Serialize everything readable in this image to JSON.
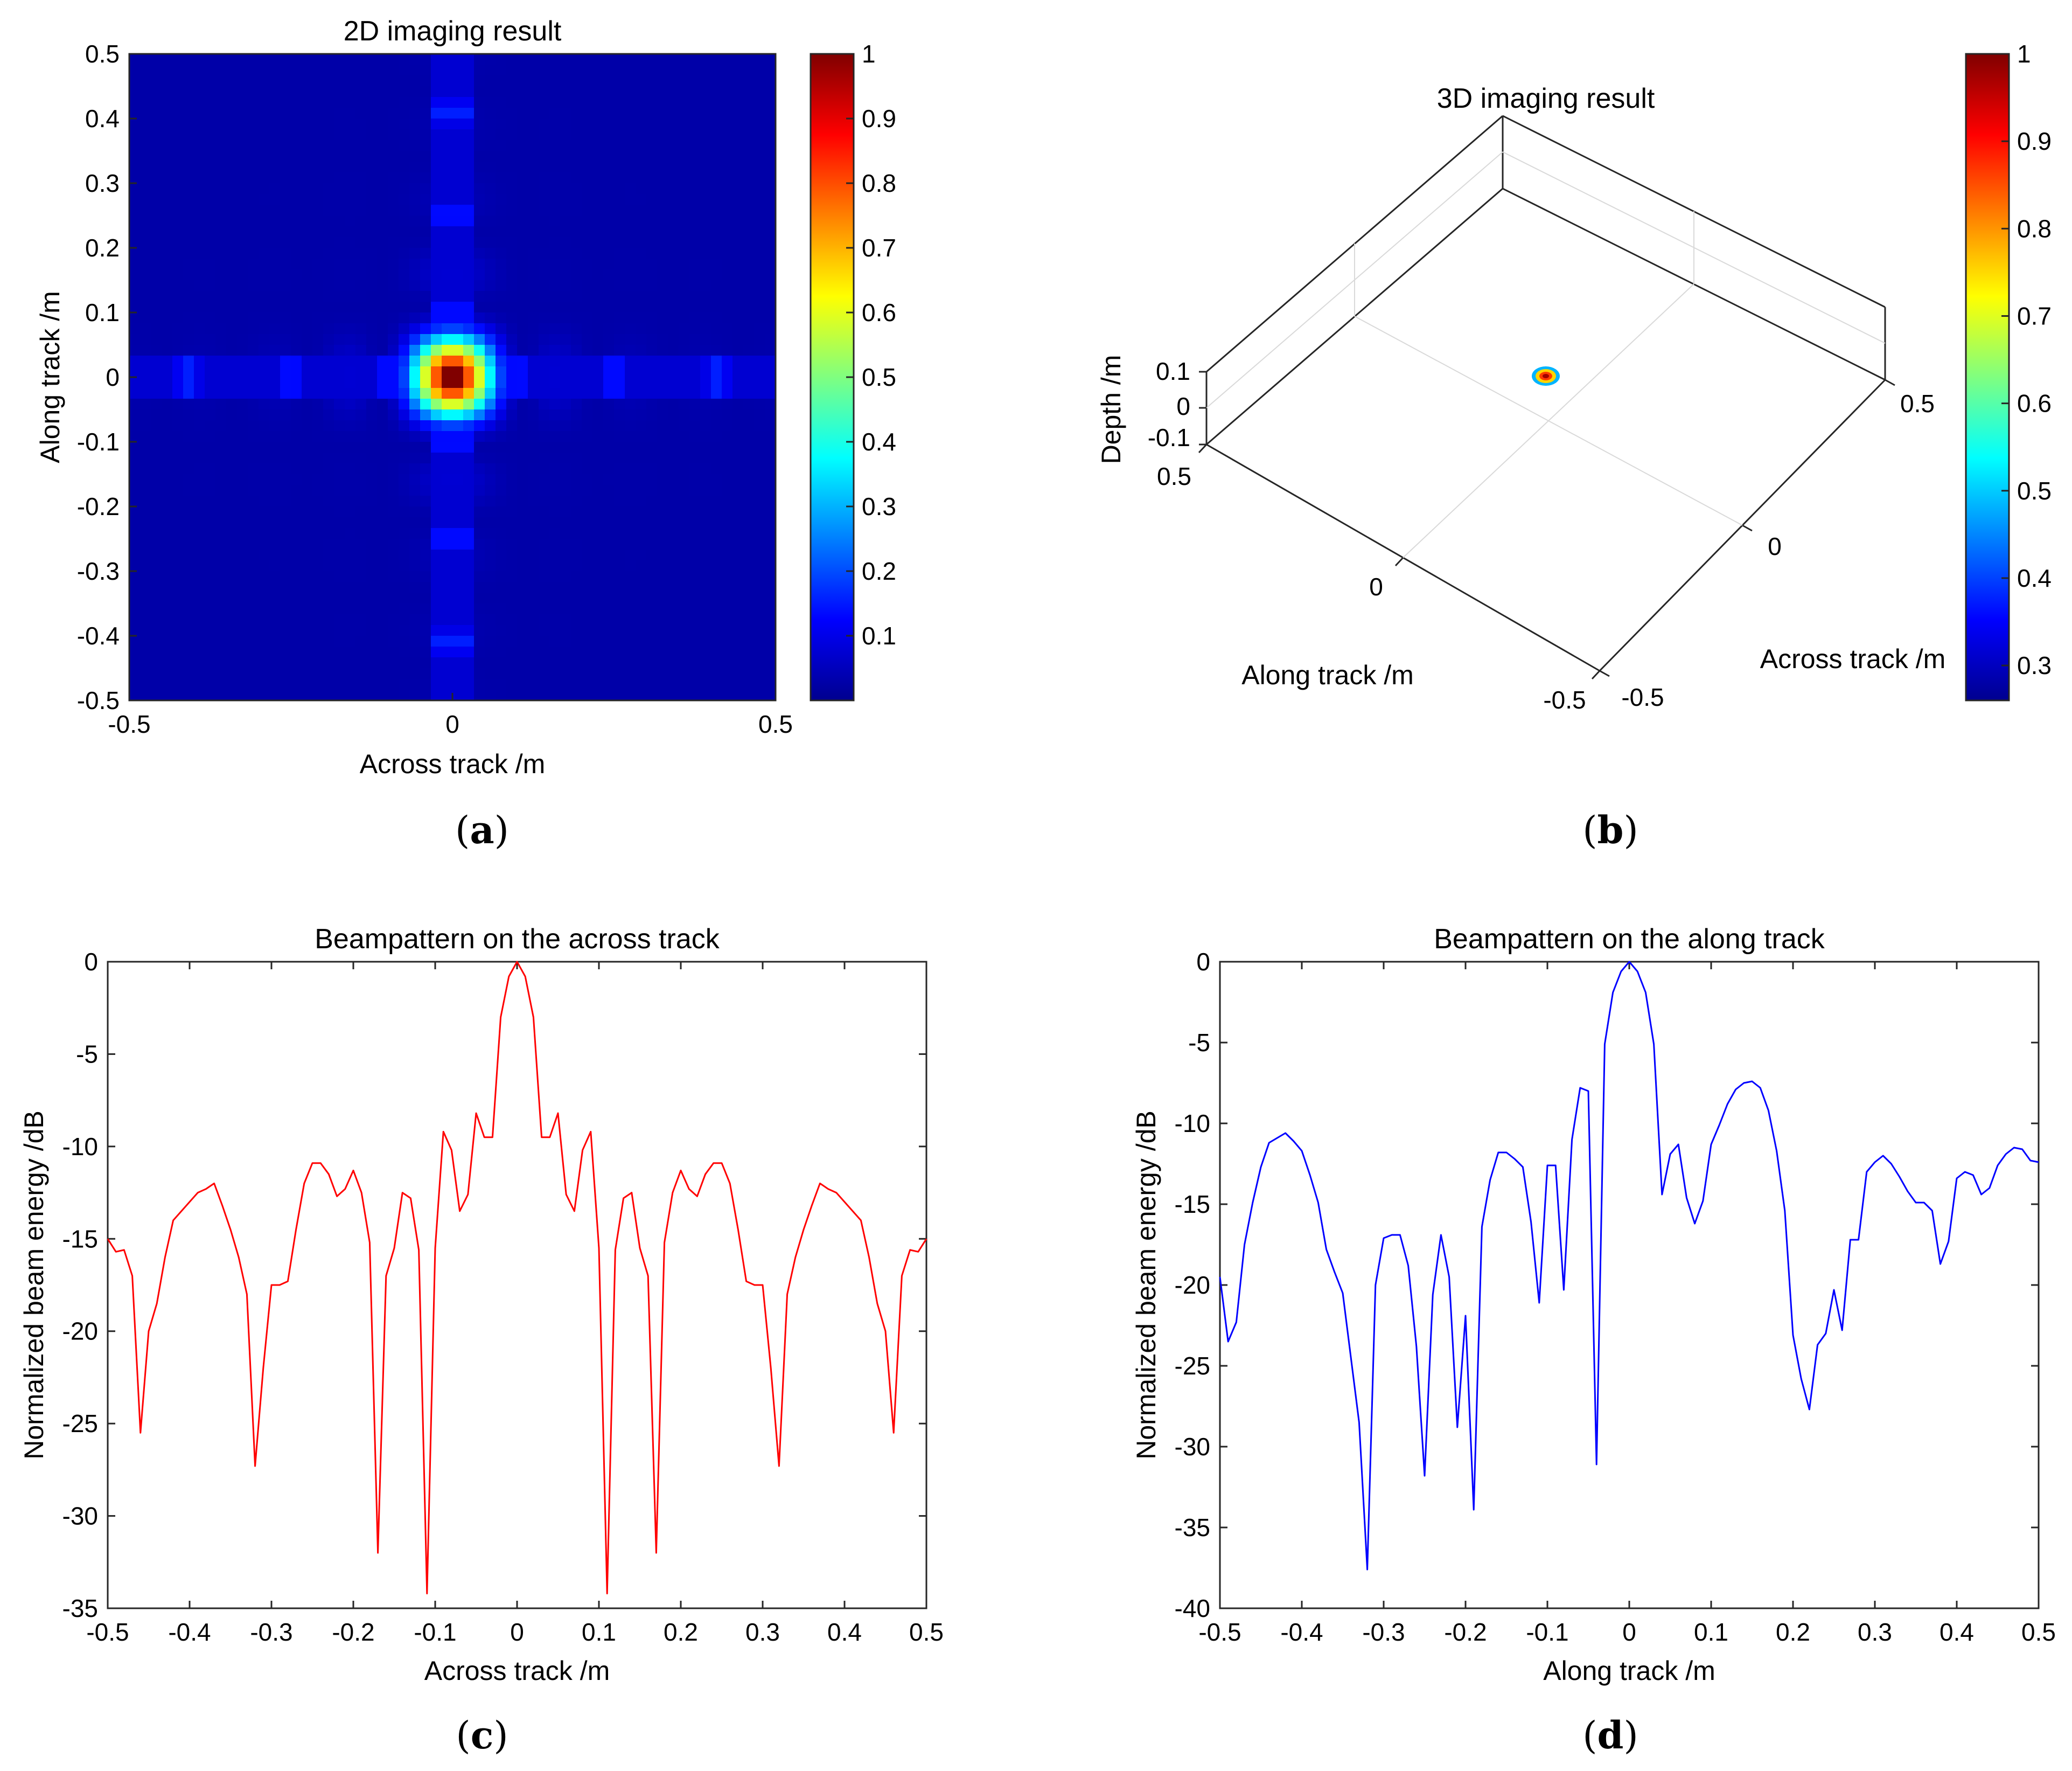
{
  "figure": {
    "panel_labels": [
      "(a)",
      "(b)",
      "(c)",
      "(d)"
    ]
  },
  "chart_data": [
    {
      "id": "a",
      "type": "heatmap",
      "title": "2D imaging result",
      "xlabel": "Across track /m",
      "ylabel": "Along track /m",
      "xlim": [
        -0.5,
        0.5
      ],
      "ylim": [
        -0.5,
        0.5
      ],
      "xticks": [
        "-0.5",
        "0",
        "0.5"
      ],
      "yticks": [
        "-0.5",
        "-0.4",
        "-0.3",
        "-0.2",
        "-0.1",
        "0",
        "0.1",
        "0.2",
        "0.3",
        "0.4",
        "0.5"
      ],
      "colorbar": {
        "min": 0,
        "max": 1,
        "ticks": [
          "0.1",
          "0.2",
          "0.3",
          "0.4",
          "0.5",
          "0.6",
          "0.7",
          "0.8",
          "0.9",
          "1"
        ]
      },
      "peak": {
        "x": 0,
        "y": 0,
        "value": 1
      },
      "background_value": 0.04,
      "sidelobe_positions": [
        -0.41,
        -0.25,
        -0.1,
        0.1,
        0.25,
        0.41
      ],
      "sidelobe_value": 0.16
    },
    {
      "id": "b",
      "type": "scatter",
      "title": "3D imaging result",
      "xlabel": "Across track /m",
      "ylabel": "Along track /m",
      "zlabel": "Depth /m",
      "across_ticks": [
        "-0.5",
        "0",
        "0.5"
      ],
      "along_ticks": [
        "0.5",
        "0",
        "-0.5"
      ],
      "depth_ticks": [
        "0.1",
        "0",
        "-0.1"
      ],
      "colorbar": {
        "min": 0.26,
        "max": 1,
        "ticks": [
          "0.3",
          "0.4",
          "0.5",
          "0.6",
          "0.7",
          "0.8",
          "0.9",
          "1"
        ]
      },
      "point": {
        "across": 0,
        "along": 0,
        "depth": 0,
        "value": 1
      }
    },
    {
      "id": "c",
      "type": "line",
      "title": "Beampattern on the across track",
      "xlabel": "Across track /m",
      "ylabel": "Normalized beam energy /dB",
      "xlim": [
        -0.5,
        0.5
      ],
      "ylim": [
        -35,
        0
      ],
      "xticks": [
        "-0.5",
        "-0.4",
        "-0.3",
        "-0.2",
        "-0.1",
        "0",
        "0.1",
        "0.2",
        "0.3",
        "0.4",
        "0.5"
      ],
      "yticks": [
        "-35",
        "-30",
        "-25",
        "-20",
        "-15",
        "-10",
        "-5",
        "0"
      ],
      "color": "#ff0000",
      "x": [
        -0.5,
        -0.49,
        -0.48,
        -0.47,
        -0.46,
        -0.45,
        -0.44,
        -0.43,
        -0.42,
        -0.41,
        -0.4,
        -0.39,
        -0.38,
        -0.37,
        -0.36,
        -0.35,
        -0.34,
        -0.33,
        -0.32,
        -0.31,
        -0.3,
        -0.29,
        -0.28,
        -0.27,
        -0.26,
        -0.25,
        -0.24,
        -0.23,
        -0.22,
        -0.21,
        -0.2,
        -0.19,
        -0.18,
        -0.17,
        -0.16,
        -0.15,
        -0.14,
        -0.13,
        -0.12,
        -0.11,
        -0.1,
        -0.09,
        -0.08,
        -0.07,
        -0.06,
        -0.05,
        -0.04,
        -0.03,
        -0.02,
        -0.01,
        0,
        0.01,
        0.02,
        0.03,
        0.04,
        0.05,
        0.06,
        0.07,
        0.08,
        0.09,
        0.1,
        0.11,
        0.12,
        0.13,
        0.14,
        0.15,
        0.16,
        0.17,
        0.18,
        0.19,
        0.2,
        0.21,
        0.22,
        0.23,
        0.24,
        0.25,
        0.26,
        0.27,
        0.28,
        0.29,
        0.3,
        0.31,
        0.32,
        0.33,
        0.34,
        0.35,
        0.36,
        0.37,
        0.38,
        0.39,
        0.4,
        0.41,
        0.42,
        0.43,
        0.44,
        0.45,
        0.46,
        0.47,
        0.48,
        0.49,
        0.5
      ],
      "y": [
        -15,
        -15.7,
        -15.6,
        -17,
        -25.5,
        -20,
        -18.5,
        -16,
        -14,
        -13.5,
        -13,
        -12.5,
        -12.3,
        -12,
        -13.2,
        -14.5,
        -16,
        -18,
        -27.3,
        -22,
        -17.5,
        -17.5,
        -17.3,
        -14.5,
        -12,
        -10.9,
        -10.9,
        -11.5,
        -12.7,
        -12.3,
        -11.3,
        -12.5,
        -15.2,
        -32,
        -17,
        -15.5,
        -12.5,
        -12.8,
        -15.6,
        -34.2,
        -15.5,
        -9.2,
        -10.2,
        -13.5,
        -12.6,
        -8.2,
        -9.5,
        -9.5,
        -3,
        -0.8,
        0,
        -0.8,
        -3,
        -9.5,
        -9.5,
        -8.2,
        -12.6,
        -13.5,
        -10.2,
        -9.2,
        -15.5,
        -34.2,
        -15.6,
        -12.8,
        -12.5,
        -15.5,
        -17,
        -32,
        -15.2,
        -12.5,
        -11.3,
        -12.3,
        -12.7,
        -11.5,
        -10.9,
        -10.9,
        -12,
        -14.5,
        -17.3,
        -17.5,
        -17.5,
        -22,
        -27.3,
        -18,
        -16,
        -14.5,
        -13.2,
        -12,
        -12.3,
        -12.5,
        -13,
        -13.5,
        -14,
        -16,
        -18.5,
        -20,
        -25.5,
        -17,
        -15.6,
        -15.7,
        -15
      ]
    },
    {
      "id": "d",
      "type": "line",
      "title": "Beampattern on the along track",
      "xlabel": "Along track /m",
      "ylabel": "Normalized beam energy /dB",
      "xlim": [
        -0.5,
        0.5
      ],
      "ylim": [
        -40,
        0
      ],
      "xticks": [
        "-0.5",
        "-0.4",
        "-0.3",
        "-0.2",
        "-0.1",
        "0",
        "0.1",
        "0.2",
        "0.3",
        "0.4",
        "0.5"
      ],
      "yticks": [
        "-40",
        "-35",
        "-30",
        "-25",
        "-20",
        "-15",
        "-10",
        "-5",
        "0"
      ],
      "color": "#0000ff",
      "x": [
        -0.5,
        -0.49,
        -0.48,
        -0.47,
        -0.46,
        -0.45,
        -0.44,
        -0.43,
        -0.42,
        -0.41,
        -0.4,
        -0.39,
        -0.38,
        -0.37,
        -0.36,
        -0.35,
        -0.34,
        -0.33,
        -0.32,
        -0.31,
        -0.3,
        -0.29,
        -0.28,
        -0.27,
        -0.26,
        -0.25,
        -0.24,
        -0.23,
        -0.22,
        -0.21,
        -0.2,
        -0.19,
        -0.18,
        -0.17,
        -0.16,
        -0.15,
        -0.14,
        -0.13,
        -0.12,
        -0.11,
        -0.1,
        -0.09,
        -0.08,
        -0.07,
        -0.06,
        -0.05,
        -0.04,
        -0.03,
        -0.02,
        -0.01,
        0,
        0.01,
        0.02,
        0.03,
        0.04,
        0.05,
        0.06,
        0.07,
        0.08,
        0.09,
        0.1,
        0.11,
        0.12,
        0.13,
        0.14,
        0.15,
        0.16,
        0.17,
        0.18,
        0.19,
        0.2,
        0.21,
        0.22,
        0.23,
        0.24,
        0.25,
        0.26,
        0.27,
        0.28,
        0.29,
        0.3,
        0.31,
        0.32,
        0.33,
        0.34,
        0.35,
        0.36,
        0.37,
        0.38,
        0.39,
        0.4,
        0.41,
        0.42,
        0.43,
        0.44,
        0.45,
        0.46,
        0.47,
        0.48,
        0.49,
        0.5
      ],
      "y": [
        -19.5,
        -23.5,
        -22.3,
        -17.5,
        -14.9,
        -12.7,
        -11.2,
        -10.9,
        -10.6,
        -11.1,
        -11.7,
        -13.2,
        -14.9,
        -17.8,
        -19.2,
        -20.5,
        -24.5,
        -28.5,
        -37.6,
        -20,
        -17.1,
        -16.9,
        -16.9,
        -18.8,
        -23.8,
        -31.8,
        -20.6,
        -16.9,
        -19.5,
        -28.8,
        -21.9,
        -33.9,
        -16.4,
        -13.5,
        -11.8,
        -11.8,
        -12.2,
        -12.7,
        -16.1,
        -21.1,
        -12.6,
        -12.6,
        -20.3,
        -11,
        -7.8,
        -8,
        -31.1,
        -5.1,
        -1.9,
        -0.6,
        0,
        -0.6,
        -1.9,
        -5.1,
        -14.4,
        -11.9,
        -11.3,
        -14.6,
        -16.2,
        -14.8,
        -11.3,
        -10.1,
        -8.8,
        -7.9,
        -7.5,
        -7.4,
        -7.8,
        -9.2,
        -11.7,
        -15.4,
        -23.1,
        -25.8,
        -27.7,
        -23.7,
        -23,
        -20.3,
        -22.8,
        -17.2,
        -17.2,
        -13,
        -12.4,
        -12,
        -12.5,
        -13.3,
        -14.2,
        -14.9,
        -14.9,
        -15.4,
        -18.7,
        -17.3,
        -13.4,
        -13,
        -13.2,
        -14.4,
        -14,
        -12.6,
        -11.9,
        -11.5,
        -11.6,
        -12.3,
        -12.4
      ]
    }
  ]
}
